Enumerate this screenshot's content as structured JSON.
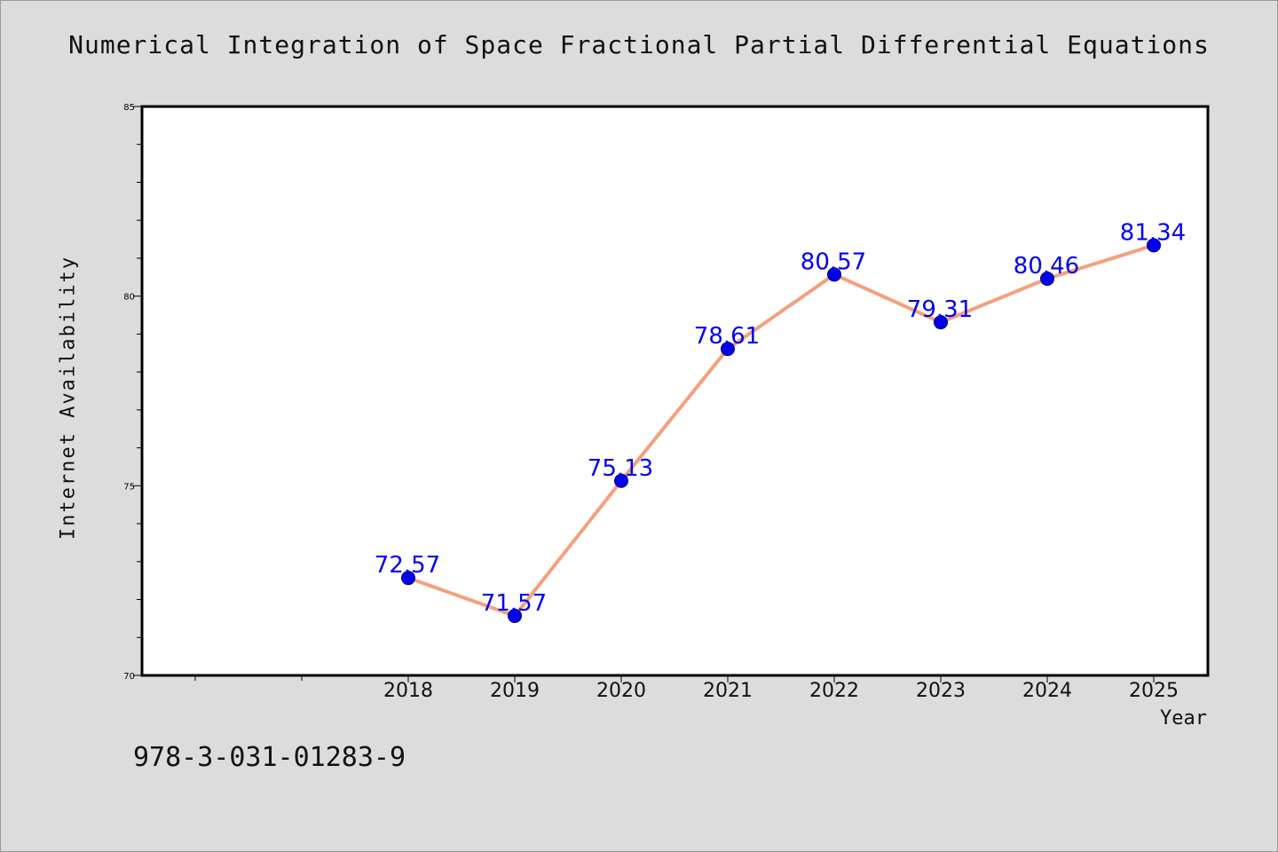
{
  "chart_data": {
    "type": "line",
    "title": "Numerical Integration of Space Fractional Partial Differential Equations",
    "xlabel": "Year",
    "ylabel": "Internet Availability",
    "categories": [
      "2018",
      "2019",
      "2020",
      "2021",
      "2022",
      "2023",
      "2024",
      "2025"
    ],
    "series": [
      {
        "values": [
          72.57,
          71.57,
          75.13,
          78.61,
          80.57,
          79.31,
          80.46,
          81.34
        ],
        "data_labels": [
          "72.57",
          "71.57",
          "75.13",
          "78.61",
          "80.57",
          "79.31",
          "80.46",
          "81.34"
        ],
        "line_color": "#f4a07c",
        "marker_color": "#0000ee",
        "label_color": "#0000ee"
      }
    ],
    "ylim": [
      70,
      85
    ],
    "yticks": [
      "70",
      "75",
      "80",
      "85"
    ],
    "grid": false,
    "legend": "none",
    "plot_background": "#ffffff",
    "page_background": "#dcdcdc"
  },
  "footnote": "978-3-031-01283-9"
}
